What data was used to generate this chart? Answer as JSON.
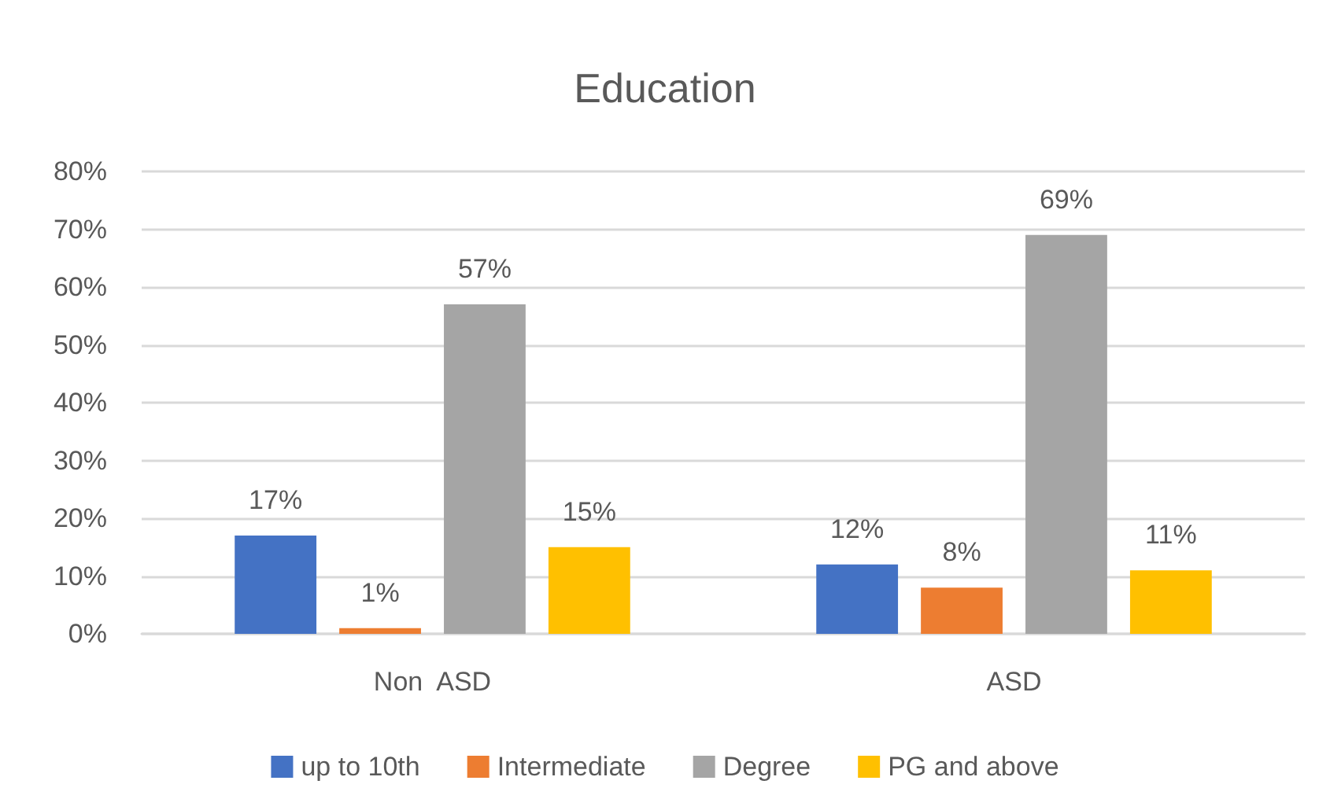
{
  "chart_data": {
    "type": "bar",
    "title": "Education",
    "categories": [
      "Non  ASD",
      "ASD"
    ],
    "series": [
      {
        "name": "up to 10th",
        "color": "#4472c4",
        "values": [
          17,
          12
        ],
        "value_labels": [
          "17%",
          "12%"
        ]
      },
      {
        "name": "Intermediate",
        "color": "#ed7d31",
        "values": [
          1,
          8
        ],
        "value_labels": [
          "1%",
          "8%"
        ]
      },
      {
        "name": "Degree",
        "color": "#a5a5a5",
        "values": [
          57,
          69
        ],
        "value_labels": [
          "57%",
          "69%"
        ]
      },
      {
        "name": "PG and above",
        "color": "#ffc000",
        "values": [
          15,
          11
        ],
        "value_labels": [
          "15%",
          "11%"
        ]
      }
    ],
    "ylim": [
      0,
      80
    ],
    "yticks": [
      {
        "value": 0,
        "label": "0%"
      },
      {
        "value": 10,
        "label": "10%"
      },
      {
        "value": 20,
        "label": "20%"
      },
      {
        "value": 30,
        "label": "30%"
      },
      {
        "value": 40,
        "label": "40%"
      },
      {
        "value": 50,
        "label": "50%"
      },
      {
        "value": 60,
        "label": "60%"
      },
      {
        "value": 70,
        "label": "70%"
      },
      {
        "value": 80,
        "label": "80%"
      }
    ],
    "grid": "y",
    "legend": "bottom"
  }
}
